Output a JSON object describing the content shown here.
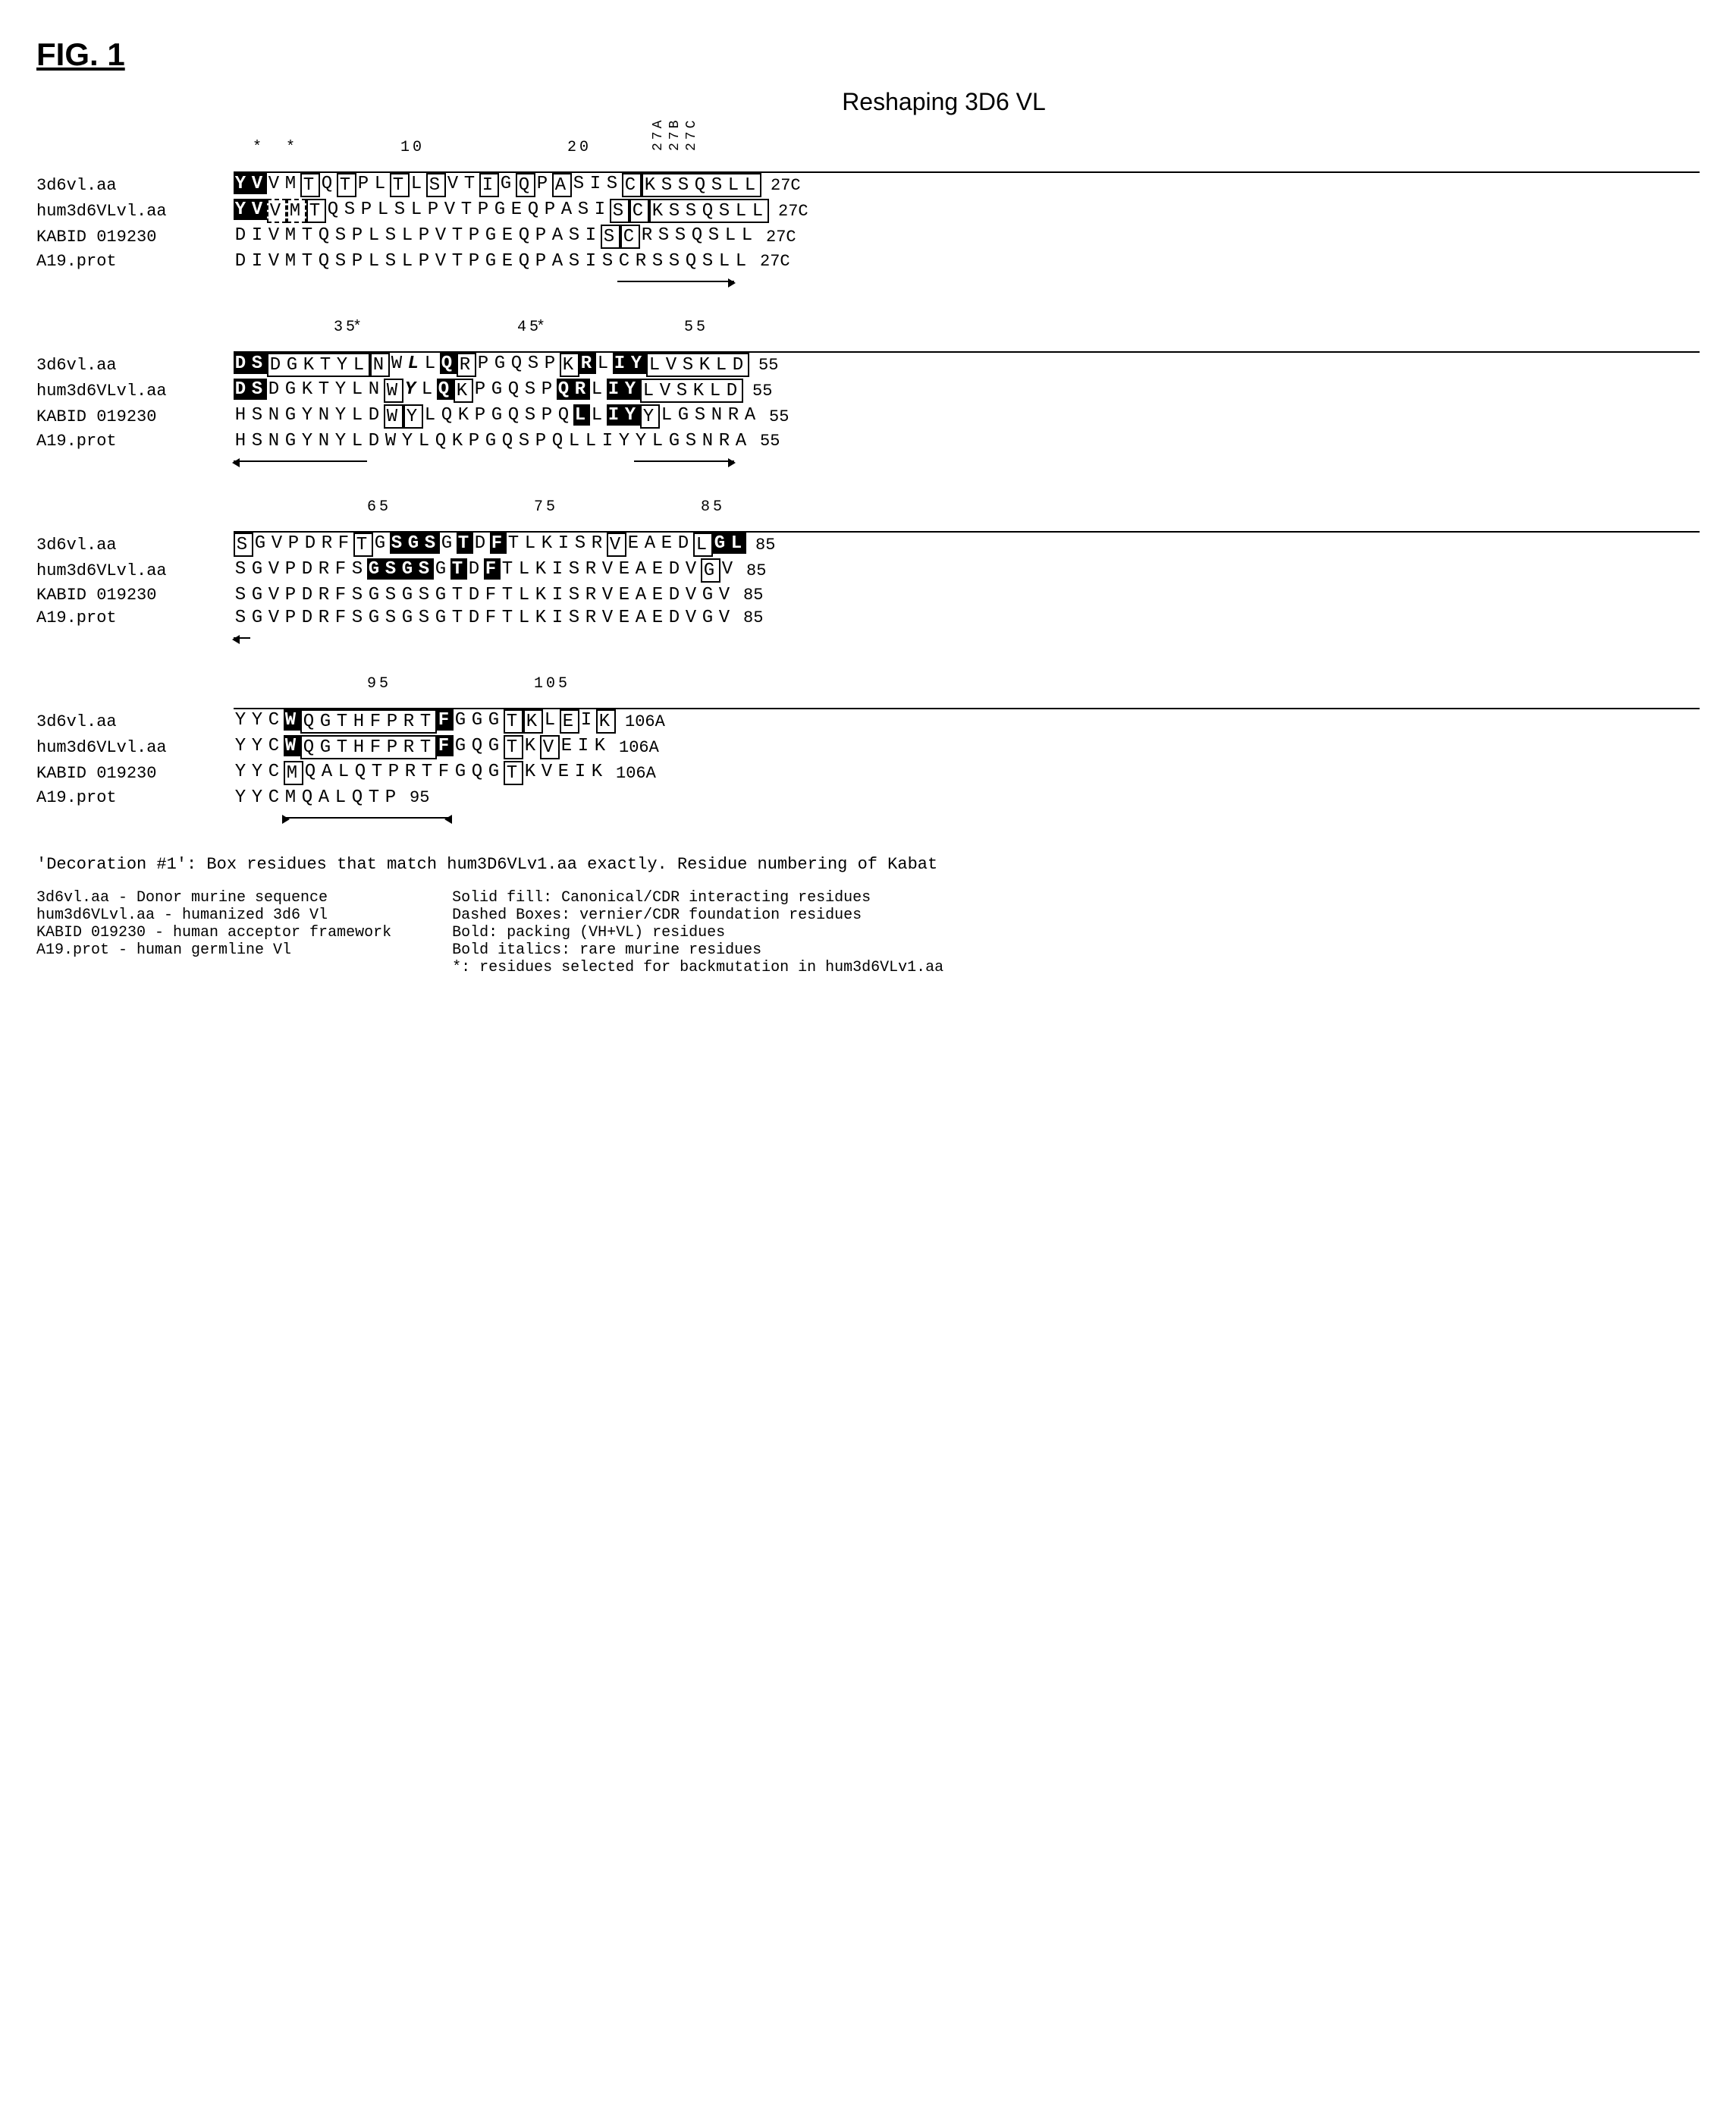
{
  "figure_label": "FIG. 1",
  "title": "Reshaping 3D6 VL",
  "sequence_labels": {
    "murine": "3d6vl.aa",
    "humanized": "hum3d6VLvl.aa",
    "acceptor": "KABID 019230",
    "germline": "A19.prot"
  },
  "blocks": [
    {
      "ruler_marks": {
        "1": "*",
        "3": "*",
        "10": "10",
        "20": "20"
      },
      "vert_labels_at": {
        "25": "27A",
        "26": "27B",
        "27": "27C"
      },
      "end_positions": [
        "27C",
        "27C",
        "27C",
        "27C"
      ],
      "rows": [
        {
          "label_key": "murine",
          "seq": "YVVMTQTPLTLSVTIGQPASISCKSSQSLL",
          "styles": {
            "0": "sf",
            "1": "sf",
            "4": "box",
            "6": "box",
            "9": "box",
            "11": "box",
            "14": "box",
            "16": "box",
            "18": "box",
            "22": "box",
            "23": "cdr",
            "24": "cdr",
            "25": "cdr",
            "26": "cdr",
            "27": "cdr",
            "28": "cdr",
            "29": "cdr"
          }
        },
        {
          "label_key": "humanized",
          "seq": "YVVMTQSPLSLPVTPGEQPASISCKSSQSLL",
          "styles": {
            "0": "sf",
            "1": "sf",
            "2": "dash",
            "3": "dash",
            "4": "box",
            "22": "box",
            "23": "box",
            "24": "cdr",
            "25": "cdr",
            "26": "cdr",
            "27": "cdr",
            "28": "cdr",
            "29": "cdr",
            "30": "cdr"
          }
        },
        {
          "label_key": "acceptor",
          "seq": "DIVMTQSPLSLPVTPGEQPASISCRSSQSLL",
          "styles": {
            "22": "box",
            "23": "box"
          }
        },
        {
          "label_key": "germline",
          "seq": "DIVMTQSPLSLPVTPGEQPASISCRSSQSLL",
          "styles": {}
        }
      ],
      "arrow_start_col": 23,
      "arrow_dir": "right",
      "arrow_len": 7
    },
    {
      "ruler_marks": {
        "6": "35",
        "7": "*",
        "17": "45",
        "18": "*",
        "27": "55"
      },
      "end_positions": [
        "55",
        "55",
        "55",
        "55"
      ],
      "rows": [
        {
          "label_key": "murine",
          "seq": "DSDGKTYLNWLLQRPGQSPKRLIYLVSKLD",
          "styles": {
            "0": "sf",
            "1": "sf",
            "2": "cdr",
            "3": "cdr",
            "4": "cdr",
            "5": "cdr",
            "6": "cdr",
            "7": "cdr",
            "8": "box",
            "10": "bi",
            "12": "sf",
            "13": "box",
            "19": "box",
            "20": "sf",
            "22": "sf",
            "23": "sf",
            "24": "cdr",
            "25": "cdr",
            "26": "cdr",
            "27": "cdr",
            "28": "cdr",
            "29": "cdr"
          }
        },
        {
          "label_key": "humanized",
          "seq": "DSDGKTYLNWYLQKPGQSPQRLIYLVSKLD",
          "styles": {
            "0": "sf",
            "1": "sf",
            "9": "box",
            "10": "bi",
            "12": "sf",
            "13": "box",
            "19": "sf",
            "20": "sf",
            "22": "sf",
            "23": "sf",
            "24": "cdr",
            "25": "cdr",
            "26": "cdr",
            "27": "cdr",
            "28": "cdr",
            "29": "cdr"
          }
        },
        {
          "label_key": "acceptor",
          "seq": "HSNGYNYLDWYLQKPGQSPQLLIYYLGSNRA",
          "styles": {
            "9": "box",
            "10": "box",
            "20": "sf",
            "22": "sf",
            "23": "sf",
            "24": "box"
          }
        },
        {
          "label_key": "germline",
          "seq": "HSNGYNYLDWYLQKPGQSPQLLIYYLGSNRA",
          "styles": {}
        }
      ],
      "arrow_start_col": 0,
      "arrow_dir": "left",
      "arrow_len": 8,
      "arrow2_start_col": 24,
      "arrow2_dir": "right",
      "arrow2_len": 6
    },
    {
      "ruler_marks": {
        "8": "65",
        "18": "75",
        "28": "85"
      },
      "end_positions": [
        "85",
        "85",
        "85",
        "85"
      ],
      "rows": [
        {
          "label_key": "murine",
          "seq": "SGVPDRFTGSGSGTDFTLKISRVEAEDLGL",
          "styles": {
            "0": "cdr",
            "7": "box",
            "9": "sf",
            "10": "sf",
            "11": "sf",
            "13": "sf",
            "15": "sf",
            "22": "box",
            "27": "box",
            "28": "sf",
            "29": "sf"
          }
        },
        {
          "label_key": "humanized",
          "seq": "SGVPDRFSGSGSGTDFTLKISRVEAEDVGV",
          "styles": {
            "8": "sf",
            "9": "sf",
            "10": "sf",
            "11": "sf",
            "13": "sf",
            "15": "sf",
            "28": "box"
          }
        },
        {
          "label_key": "acceptor",
          "seq": "SGVPDRFSGSGSGTDFTLKISRVEAEDVGV",
          "styles": {}
        },
        {
          "label_key": "germline",
          "seq": "SGVPDRFSGSGSGTDFTLKISRVEAEDVGV",
          "styles": {}
        }
      ],
      "arrow_start_col": 0,
      "arrow_dir": "left",
      "arrow_len": 1
    },
    {
      "ruler_marks": {
        "8": "95",
        "18": "105"
      },
      "end_positions": [
        "106A",
        "106A",
        "106A",
        "95"
      ],
      "rows": [
        {
          "label_key": "murine",
          "seq": "YYCWQGTHFPRTFGGGTKLEIK",
          "styles": {
            "3": "sf",
            "4": "cdr",
            "5": "cdr",
            "6": "cdr",
            "7": "cdr",
            "8": "cdr",
            "9": "cdr",
            "10": "cdr",
            "11": "cdr",
            "12": "sf",
            "16": "box",
            "17": "box",
            "19": "box",
            "21": "box"
          }
        },
        {
          "label_key": "humanized",
          "seq": "YYCWQGTHFPRTFGQGTKVEIK",
          "styles": {
            "3": "sf",
            "4": "cdr",
            "5": "cdr",
            "6": "cdr",
            "7": "cdr",
            "8": "cdr",
            "9": "cdr",
            "10": "cdr",
            "11": "cdr",
            "12": "sf",
            "16": "box",
            "18": "box"
          }
        },
        {
          "label_key": "acceptor",
          "seq": "YYCMQALQTPRTFGQGTKVEIK",
          "styles": {
            "3": "box",
            "16": "box"
          }
        },
        {
          "label_key": "germline",
          "seq": "YYCMQALQTP",
          "styles": {}
        }
      ],
      "arrow_start_col": 3,
      "arrow_dir": "both",
      "arrow_len": 10
    }
  ],
  "decoration_note": "'Decoration #1': Box residues that match hum3D6VLv1.aa exactly. Residue numbering of Kabat",
  "legend_left": {
    "l1": "3d6vl.aa - Donor murine sequence",
    "l2": "hum3d6VLvl.aa - humanized 3d6 Vl",
    "l3": "KABID 019230 - human acceptor framework",
    "l4": "A19.prot - human germline Vl"
  },
  "legend_right": {
    "r1": "Solid fill: Canonical/CDR interacting residues",
    "r2": "Dashed Boxes: vernier/CDR foundation residues",
    "r3": "Bold: packing (VH+VL) residues",
    "r4": "Bold italics: rare murine residues",
    "r5": "*: residues selected for backmutation in hum3d6VLv1.aa"
  },
  "colors": {
    "bg": "#ffffff",
    "fg": "#000000"
  }
}
